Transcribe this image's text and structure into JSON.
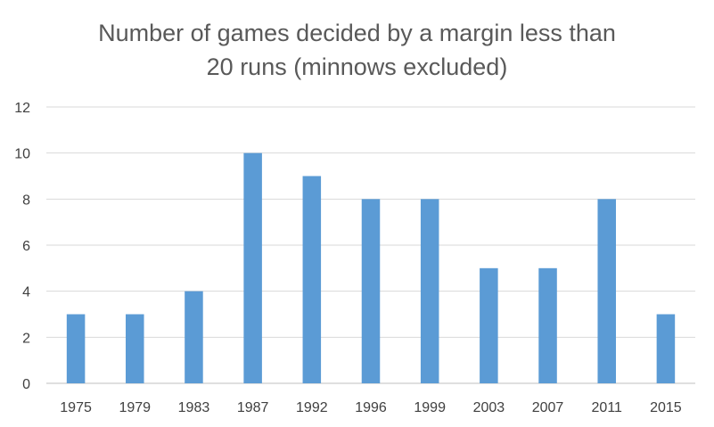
{
  "chart_data": {
    "type": "bar",
    "title_lines": [
      "Number of games decided by a margin less than",
      "20 runs (minnows excluded)"
    ],
    "categories": [
      "1975",
      "1979",
      "1983",
      "1987",
      "1992",
      "1996",
      "1999",
      "2003",
      "2007",
      "2011",
      "2015"
    ],
    "values": [
      3,
      3,
      4,
      10,
      9,
      8,
      8,
      5,
      5,
      8,
      3
    ],
    "ylim": [
      0,
      12
    ],
    "yticks": [
      0,
      2,
      4,
      6,
      8,
      10,
      12
    ],
    "grid": true,
    "legend": "none",
    "bar_color": "#5B9BD5"
  }
}
